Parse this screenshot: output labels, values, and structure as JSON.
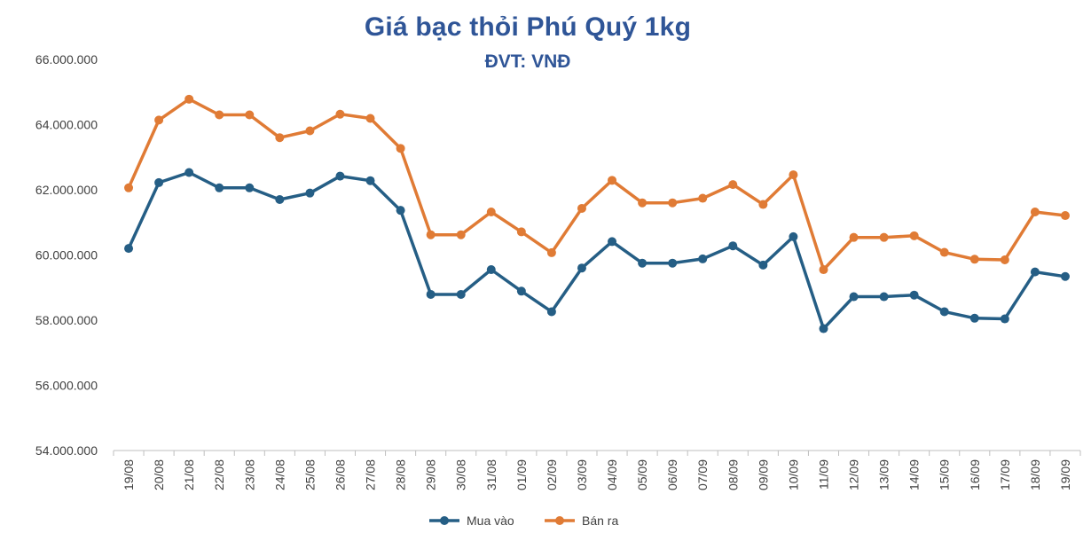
{
  "chart_data": {
    "type": "line",
    "title": "Giá bạc thỏi Phú Quý 1kg",
    "subtitle": "ĐVT: VNĐ",
    "categories": [
      "19/08",
      "20/08",
      "21/08",
      "22/08",
      "23/08",
      "24/08",
      "25/08",
      "26/08",
      "27/08",
      "28/08",
      "29/08",
      "30/08",
      "31/08",
      "01/09",
      "02/09",
      "03/09",
      "04/09",
      "05/09",
      "06/09",
      "07/09",
      "08/09",
      "09/09",
      "10/09",
      "11/09",
      "12/09",
      "13/09",
      "14/09",
      "15/09",
      "16/09",
      "17/09",
      "18/09",
      "19/09"
    ],
    "ylim": [
      54000000,
      66000000
    ],
    "yticks": [
      54000000,
      56000000,
      58000000,
      60000000,
      62000000,
      64000000,
      66000000
    ],
    "ytick_labels": [
      "54.000.000",
      "56.000.000",
      "58.000.000",
      "60.000.000",
      "62.000.000",
      "64.000.000",
      "66.000.000"
    ],
    "grid": false,
    "legend": "bottom",
    "series": [
      {
        "name": "Mua vào",
        "color": "#255e85",
        "values": [
          60200000,
          62220000,
          62530000,
          62060000,
          62060000,
          61700000,
          61900000,
          62420000,
          62280000,
          61370000,
          58790000,
          58790000,
          59550000,
          58890000,
          58260000,
          59600000,
          60410000,
          59750000,
          59750000,
          59880000,
          60280000,
          59690000,
          60560000,
          57740000,
          58720000,
          58720000,
          58770000,
          58260000,
          58060000,
          58040000,
          59480000,
          59340000
        ]
      },
      {
        "name": "Bán ra",
        "color": "#e07b35",
        "values": [
          62060000,
          64140000,
          64780000,
          64300000,
          64300000,
          63600000,
          63810000,
          64320000,
          64190000,
          63270000,
          60620000,
          60620000,
          61320000,
          60710000,
          60070000,
          61430000,
          62290000,
          61600000,
          61600000,
          61740000,
          62160000,
          61550000,
          62460000,
          59550000,
          60540000,
          60540000,
          60590000,
          60080000,
          59870000,
          59850000,
          61320000,
          61210000
        ]
      }
    ]
  }
}
